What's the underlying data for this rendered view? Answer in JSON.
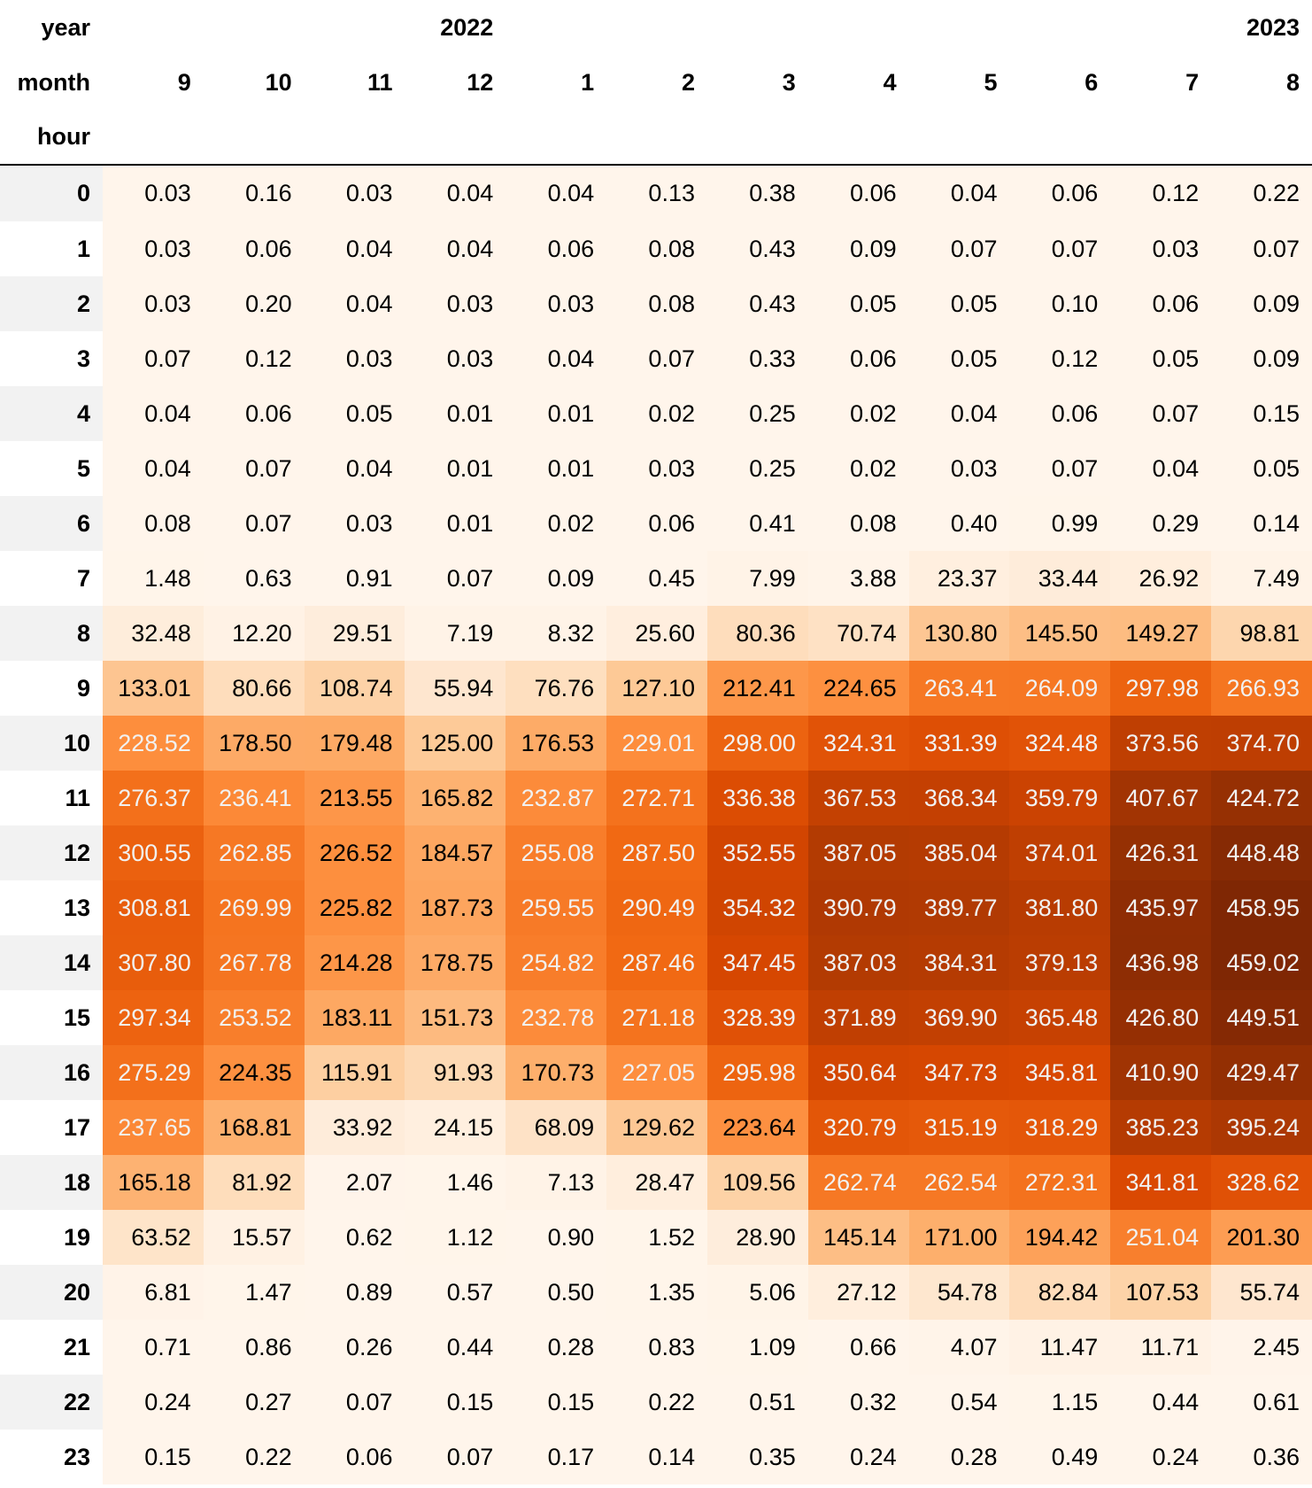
{
  "chart_data": {
    "type": "heatmap",
    "index_names": [
      "year",
      "month",
      "hour"
    ],
    "years": [
      {
        "label": "2022",
        "span": 4
      },
      {
        "label": "2023",
        "span": 8
      }
    ],
    "months": [
      "9",
      "10",
      "11",
      "12",
      "1",
      "2",
      "3",
      "4",
      "5",
      "6",
      "7",
      "8"
    ],
    "hours": [
      "0",
      "1",
      "2",
      "3",
      "4",
      "5",
      "6",
      "7",
      "8",
      "9",
      "10",
      "11",
      "12",
      "13",
      "14",
      "15",
      "16",
      "17",
      "18",
      "19",
      "20",
      "21",
      "22",
      "23"
    ],
    "values": [
      [
        "0.03",
        "0.16",
        "0.03",
        "0.04",
        "0.04",
        "0.13",
        "0.38",
        "0.06",
        "0.04",
        "0.06",
        "0.12",
        "0.22"
      ],
      [
        "0.03",
        "0.06",
        "0.04",
        "0.04",
        "0.06",
        "0.08",
        "0.43",
        "0.09",
        "0.07",
        "0.07",
        "0.03",
        "0.07"
      ],
      [
        "0.03",
        "0.20",
        "0.04",
        "0.03",
        "0.03",
        "0.08",
        "0.43",
        "0.05",
        "0.05",
        "0.10",
        "0.06",
        "0.09"
      ],
      [
        "0.07",
        "0.12",
        "0.03",
        "0.03",
        "0.04",
        "0.07",
        "0.33",
        "0.06",
        "0.05",
        "0.12",
        "0.05",
        "0.09"
      ],
      [
        "0.04",
        "0.06",
        "0.05",
        "0.01",
        "0.01",
        "0.02",
        "0.25",
        "0.02",
        "0.04",
        "0.06",
        "0.07",
        "0.15"
      ],
      [
        "0.04",
        "0.07",
        "0.04",
        "0.01",
        "0.01",
        "0.03",
        "0.25",
        "0.02",
        "0.03",
        "0.07",
        "0.04",
        "0.05"
      ],
      [
        "0.08",
        "0.07",
        "0.03",
        "0.01",
        "0.02",
        "0.06",
        "0.41",
        "0.08",
        "0.40",
        "0.99",
        "0.29",
        "0.14"
      ],
      [
        "1.48",
        "0.63",
        "0.91",
        "0.07",
        "0.09",
        "0.45",
        "7.99",
        "3.88",
        "23.37",
        "33.44",
        "26.92",
        "7.49"
      ],
      [
        "32.48",
        "12.20",
        "29.51",
        "7.19",
        "8.32",
        "25.60",
        "80.36",
        "70.74",
        "130.80",
        "145.50",
        "149.27",
        "98.81"
      ],
      [
        "133.01",
        "80.66",
        "108.74",
        "55.94",
        "76.76",
        "127.10",
        "212.41",
        "224.65",
        "263.41",
        "264.09",
        "297.98",
        "266.93"
      ],
      [
        "228.52",
        "178.50",
        "179.48",
        "125.00",
        "176.53",
        "229.01",
        "298.00",
        "324.31",
        "331.39",
        "324.48",
        "373.56",
        "374.70"
      ],
      [
        "276.37",
        "236.41",
        "213.55",
        "165.82",
        "232.87",
        "272.71",
        "336.38",
        "367.53",
        "368.34",
        "359.79",
        "407.67",
        "424.72"
      ],
      [
        "300.55",
        "262.85",
        "226.52",
        "184.57",
        "255.08",
        "287.50",
        "352.55",
        "387.05",
        "385.04",
        "374.01",
        "426.31",
        "448.48"
      ],
      [
        "308.81",
        "269.99",
        "225.82",
        "187.73",
        "259.55",
        "290.49",
        "354.32",
        "390.79",
        "389.77",
        "381.80",
        "435.97",
        "458.95"
      ],
      [
        "307.80",
        "267.78",
        "214.28",
        "178.75",
        "254.82",
        "287.46",
        "347.45",
        "387.03",
        "384.31",
        "379.13",
        "436.98",
        "459.02"
      ],
      [
        "297.34",
        "253.52",
        "183.11",
        "151.73",
        "232.78",
        "271.18",
        "328.39",
        "371.89",
        "369.90",
        "365.48",
        "426.80",
        "449.51"
      ],
      [
        "275.29",
        "224.35",
        "115.91",
        "91.93",
        "170.73",
        "227.05",
        "295.98",
        "350.64",
        "347.73",
        "345.81",
        "410.90",
        "429.47"
      ],
      [
        "237.65",
        "168.81",
        "33.92",
        "24.15",
        "68.09",
        "129.62",
        "223.64",
        "320.79",
        "315.19",
        "318.29",
        "385.23",
        "395.24"
      ],
      [
        "165.18",
        "81.92",
        "2.07",
        "1.46",
        "7.13",
        "28.47",
        "109.56",
        "262.74",
        "262.54",
        "272.31",
        "341.81",
        "328.62"
      ],
      [
        "63.52",
        "15.57",
        "0.62",
        "1.12",
        "0.90",
        "1.52",
        "28.90",
        "145.14",
        "171.00",
        "194.42",
        "251.04",
        "201.30"
      ],
      [
        "6.81",
        "1.47",
        "0.89",
        "0.57",
        "0.50",
        "1.35",
        "5.06",
        "27.12",
        "54.78",
        "82.84",
        "107.53",
        "55.74"
      ],
      [
        "0.71",
        "0.86",
        "0.26",
        "0.44",
        "0.28",
        "0.83",
        "1.09",
        "0.66",
        "4.07",
        "11.47",
        "11.71",
        "2.45"
      ],
      [
        "0.24",
        "0.27",
        "0.07",
        "0.15",
        "0.15",
        "0.22",
        "0.51",
        "0.32",
        "0.54",
        "1.15",
        "0.44",
        "0.61"
      ],
      [
        "0.15",
        "0.22",
        "0.06",
        "0.07",
        "0.17",
        "0.14",
        "0.35",
        "0.24",
        "0.28",
        "0.49",
        "0.24",
        "0.36"
      ]
    ],
    "colormap": "Oranges",
    "color_range": [
      0,
      459.02
    ],
    "colors": {
      "low": "#fff5eb",
      "high": "#7f2704",
      "text_dark": "#000000",
      "text_light": "#f1f1f1"
    }
  }
}
